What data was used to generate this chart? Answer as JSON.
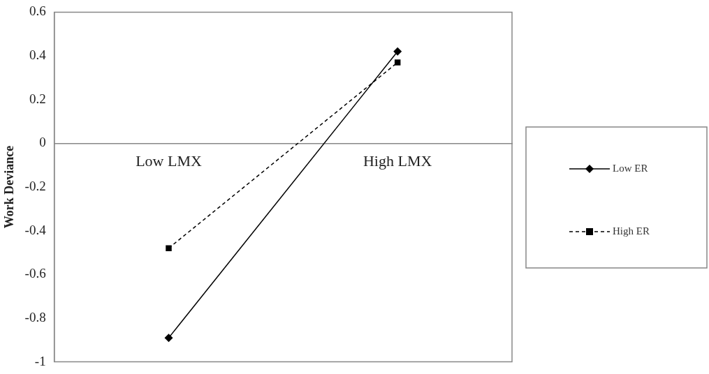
{
  "chart_data": {
    "type": "line",
    "ylabel": "Work Deviance",
    "categories": [
      "Low LMX",
      "High LMX"
    ],
    "series": [
      {
        "name": "Low ER",
        "color": "#000000",
        "values": [
          -0.89,
          0.42
        ],
        "marker": "diamond",
        "line_style": "solid"
      },
      {
        "name": "High ER",
        "color": "#000000",
        "values": [
          -0.48,
          0.37
        ],
        "marker": "square",
        "line_style": "dashed"
      }
    ],
    "ylim": [
      -1,
      0.6
    ],
    "yticks": [
      -1,
      -0.8,
      -0.6,
      -0.4,
      -0.2,
      0,
      0.2,
      0.4,
      0.6
    ],
    "grid": false,
    "legend": "right"
  }
}
